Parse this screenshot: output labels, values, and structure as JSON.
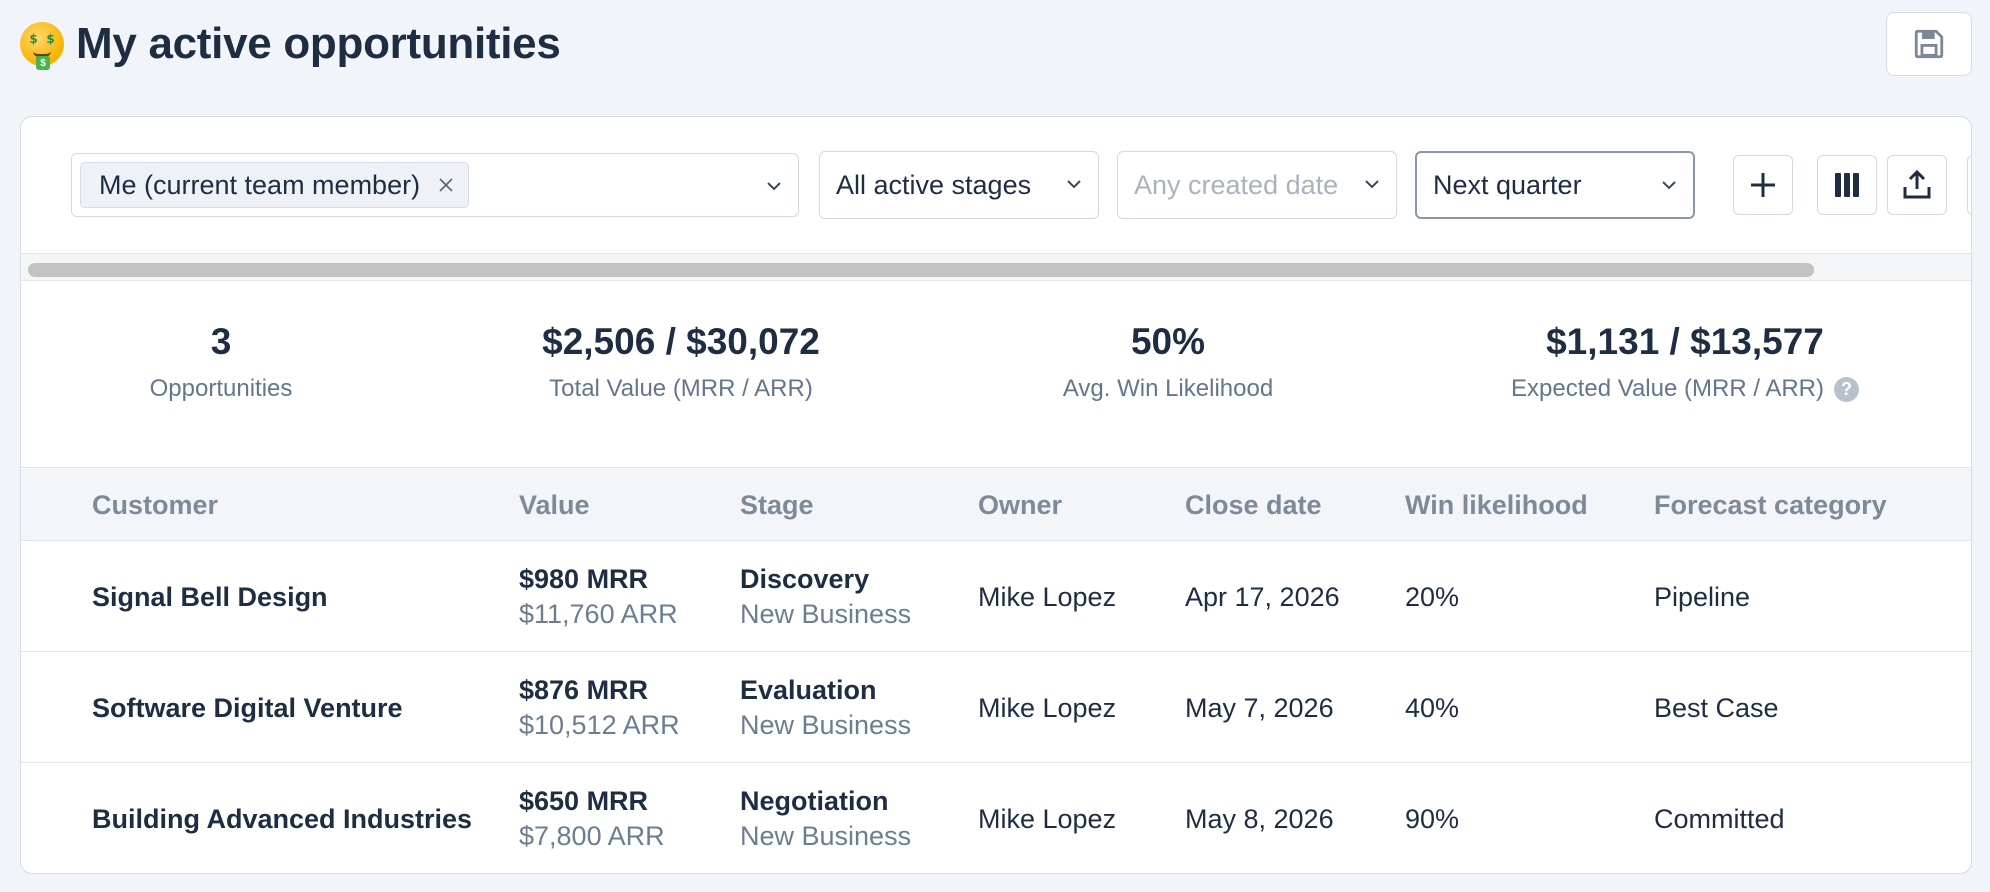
{
  "header": {
    "title": "My active opportunities",
    "emoji": "money-mouth-face-icon",
    "save_icon": "floppy-disk-icon"
  },
  "filters": {
    "team_chip": "Me (current team member)",
    "stage": "All active stages",
    "created_placeholder": "Any created date",
    "period": "Next quarter",
    "buttons": [
      "plus-icon",
      "columns-icon",
      "export-icon"
    ]
  },
  "stats": [
    {
      "value": "3",
      "label": "Opportunities"
    },
    {
      "value": "$2,506 / $30,072",
      "label": "Total Value (MRR / ARR)"
    },
    {
      "value": "50%",
      "label": "Avg. Win Likelihood"
    },
    {
      "value": "$1,131 / $13,577",
      "label": "Expected Value (MRR / ARR)"
    }
  ],
  "table": {
    "columns": [
      "Customer",
      "Value",
      "Stage",
      "Owner",
      "Close date",
      "Win likelihood",
      "Forecast category"
    ],
    "rows": [
      {
        "customer": "Signal Bell Design",
        "mrr": "$980 MRR",
        "arr": "$11,760 ARR",
        "stage": "Discovery",
        "type": "New Business",
        "owner": "Mike Lopez",
        "close": "Apr 17, 2026",
        "win": "20%",
        "forecast": "Pipeline"
      },
      {
        "customer": "Software Digital Venture",
        "mrr": "$876 MRR",
        "arr": "$10,512 ARR",
        "stage": "Evaluation",
        "type": "New Business",
        "owner": "Mike Lopez",
        "close": "May 7, 2026",
        "win": "40%",
        "forecast": "Best Case"
      },
      {
        "customer": "Building Advanced Industries",
        "mrr": "$650 MRR",
        "arr": "$7,800 ARR",
        "stage": "Negotiation",
        "type": "New Business",
        "owner": "Mike Lopez",
        "close": "May 8, 2026",
        "win": "90%",
        "forecast": "Committed"
      }
    ]
  },
  "colors": {
    "text": "#1e2d42",
    "muted": "#64768b",
    "background": "#f1f4f8"
  }
}
